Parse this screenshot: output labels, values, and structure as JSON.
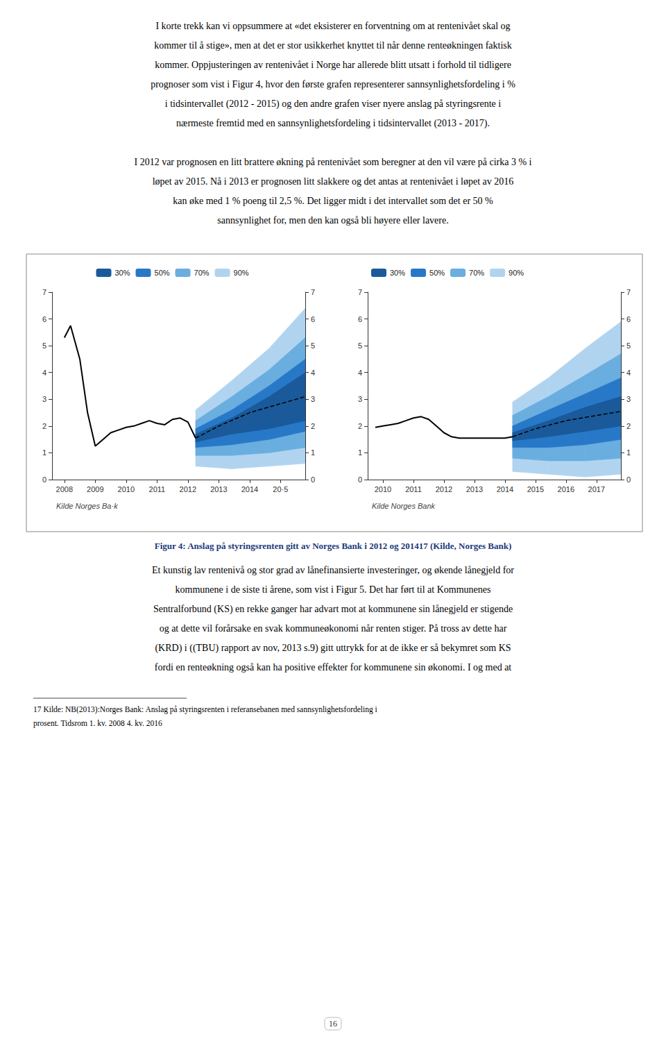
{
  "page": {
    "text_above": [
      [
        "I korte trekk kan vi oppsummere at «det eksisterer en forventning om at rentenivået skal og",
        "kommer til å stige», men at det er stor usikkerhet knyttet til når denne renteøkningen faktisk",
        "kommer. Oppjusteringen av rentenivået i Norge har allerede blitt utsatt i forhold til tidligere",
        "prognoser som vist i Figur 4, hvor den første grafen representerer sannsynlighetsfordeling i %",
        "i tidsintervallet (2012 - 2015) og den andre grafen viser nyere anslag på styringsrente i",
        "nærmeste fremtid med en sannsynlighetsfordeling i tidsintervallet (2013 - 2017)."
      ],
      [
        "I 2012 var prognosen en litt brattere økning på rentenivået som beregner at den vil være på cirka 3 % i",
        "løpet av 2015. Nå i 2013 er prognosen litt slakkere og det antas at rentenivået i løpet av 2016",
        "kan øke med 1 % poeng til 2,5 %. Det ligger midt i det intervallet som det er 50 %",
        "sannsynlighet for, men den kan også bli høyere eller lavere."
      ]
    ],
    "caption": "Figur 4: Anslag på styringsrenten gitt av Norges Bank i 2012 og 201417 (Kilde, Norges Bank)",
    "text_below": [
      "Et kunstig lav rentenivå og stor grad av lånefinansierte investeringer, og økende lånegjeld for",
      "kommunene i de siste ti årene, som vist i Figur 5. Det har ført til at Kommunenes",
      "Sentralforbund (KS) en rekke ganger har advart mot at kommunene sin lånegjeld er stigende",
      "og at dette vil forårsake en svak kommuneøkonomi når renten stiger. På tross av dette har",
      "(KRD) i ((TBU) rapport av nov, 2013 s.9) gitt uttrykk for at de ikke er så bekymret som KS",
      "fordi en renteøkning også kan ha positive effekter for kommunene sin økonomi. I og med at"
    ],
    "footnote": [
      "17 Kilde: NB(2013):Norges Bank: Anslag på styringsrenten i referansebanen med sannsynlighetsfordeling i",
      "prosent. Tidsrom 1. kv. 2008 4. kv. 2016"
    ],
    "page_number": "16"
  },
  "chart_data": [
    {
      "type": "line",
      "xlim": [
        2007.6,
        2015.8
      ],
      "xticks": [
        2008,
        2009,
        2010,
        2011,
        2012,
        2013,
        2014,
        {
          "value": 2015,
          "label": "20·5"
        }
      ],
      "ylim": [
        0,
        7
      ],
      "yticks": [
        0,
        1,
        2,
        3,
        4,
        5,
        6,
        7
      ],
      "y2lim": [
        0,
        7
      ],
      "y2ticks": [
        0,
        1,
        2,
        3,
        4,
        5,
        6,
        7
      ],
      "grid": false,
      "legend": "upper center",
      "annotations": [
        "Kilde Norges Ba·k"
      ],
      "series": [
        {
          "name": "30%",
          "type": "band",
          "color": "#1a5a9a",
          "x": [
            2012.25,
            2013.4215,
            2014.6285,
            2015.8
          ],
          "lower": [
            1.4,
            1.7,
            1.9,
            2.2
          ],
          "upper": [
            1.7,
            2.3,
            3.1,
            4.0
          ]
        },
        {
          "name": "50%",
          "type": "band",
          "color": "#2878c8",
          "x": [
            2012.25,
            2013.4215,
            2014.6285,
            2015.8
          ],
          "lower": [
            1.2,
            1.3,
            1.5,
            1.8
          ],
          "upper": [
            1.9,
            2.6,
            3.5,
            4.5
          ]
        },
        {
          "name": "70%",
          "type": "band",
          "color": "#6aaee0",
          "x": [
            2012.25,
            2013.4215,
            2014.6285,
            2015.8
          ],
          "lower": [
            0.9,
            0.9,
            1.0,
            1.2
          ],
          "upper": [
            2.2,
            3.1,
            4.1,
            5.3
          ]
        },
        {
          "name": "90%",
          "type": "band",
          "color": "#b0d4f0",
          "x": [
            2012.25,
            2013.4215,
            2014.6285,
            2015.8
          ],
          "lower": [
            0.5,
            0.4,
            0.5,
            0.6
          ],
          "upper": [
            2.6,
            3.7,
            4.9,
            6.4
          ]
        },
        {
          "type": "line",
          "color": "#000000",
          "line_style": "dashed",
          "x": [
            2012.25,
            2013.0,
            2014.0,
            2015.8
          ],
          "values": [
            1.55,
            2.0,
            2.5,
            3.1
          ]
        },
        {
          "type": "line",
          "color": "#000000",
          "line_style": "solid",
          "x": [
            2008.0,
            2008.2,
            2008.5,
            2008.75,
            2009.0,
            2009.25,
            2009.5,
            2009.75,
            2010.0,
            2010.25,
            2010.5,
            2010.75,
            2011.0,
            2011.25,
            2011.5,
            2011.75,
            2012.0,
            2012.25
          ],
          "values": [
            5.3,
            5.75,
            4.5,
            2.5,
            1.25,
            1.5,
            1.75,
            1.85,
            1.95,
            2.0,
            2.1,
            2.2,
            2.1,
            2.05,
            2.25,
            2.3,
            2.15,
            1.55
          ]
        }
      ]
    },
    {
      "type": "line",
      "xlim": [
        2009.5,
        2017.8
      ],
      "xticks": [
        2010,
        2011,
        2012,
        2013,
        2014,
        2015,
        2016,
        2017
      ],
      "ylim": [
        0,
        7
      ],
      "yticks": [
        0,
        1,
        2,
        3,
        4,
        5,
        6,
        7
      ],
      "y2lim": [
        0,
        7
      ],
      "y2ticks": [
        0,
        1,
        2,
        3,
        4,
        5,
        6,
        7
      ],
      "grid": false,
      "legend": "upper left",
      "annotations": [
        "Kilde Norges Bank"
      ],
      "series": [
        {
          "name": "30%",
          "type": "band",
          "color": "#1a5a9a",
          "x": [
            2014.25,
            2015.4215,
            2016.6285,
            2017.8
          ],
          "lower": [
            1.45,
            1.6,
            1.8,
            2.0
          ],
          "upper": [
            1.75,
            2.2,
            2.7,
            3.1
          ]
        },
        {
          "name": "50%",
          "type": "band",
          "color": "#2878c8",
          "x": [
            2014.25,
            2015.4215,
            2016.6285,
            2017.8
          ],
          "lower": [
            1.2,
            1.2,
            1.3,
            1.5
          ],
          "upper": [
            2.0,
            2.6,
            3.2,
            3.8
          ]
        },
        {
          "name": "70%",
          "type": "band",
          "color": "#6aaee0",
          "x": [
            2014.25,
            2015.4215,
            2016.6285,
            2017.8
          ],
          "lower": [
            0.8,
            0.7,
            0.7,
            0.8
          ],
          "upper": [
            2.4,
            3.1,
            3.9,
            4.7
          ]
        },
        {
          "name": "90%",
          "type": "band",
          "color": "#b0d4f0",
          "x": [
            2014.25,
            2015.4215,
            2016.6285,
            2017.8
          ],
          "lower": [
            0.3,
            0.2,
            0.1,
            0.2
          ],
          "upper": [
            2.9,
            3.8,
            4.9,
            5.9
          ]
        },
        {
          "type": "line",
          "color": "#000000",
          "line_style": "dashed",
          "x": [
            2014.25,
            2015.0,
            2016.0,
            2017.8
          ],
          "values": [
            1.6,
            1.9,
            2.2,
            2.55
          ]
        },
        {
          "type": "line",
          "color": "#000000",
          "line_style": "solid",
          "x": [
            2009.75,
            2010.0,
            2010.25,
            2010.5,
            2010.75,
            2011.0,
            2011.25,
            2011.5,
            2011.75,
            2012.0,
            2012.25,
            2012.5,
            2012.75,
            2013.0,
            2013.25,
            2013.5,
            2013.75,
            2014.0,
            2014.25
          ],
          "values": [
            1.95,
            2.0,
            2.05,
            2.1,
            2.2,
            2.3,
            2.35,
            2.25,
            2.0,
            1.75,
            1.6,
            1.55,
            1.55,
            1.55,
            1.55,
            1.55,
            1.55,
            1.55,
            1.6
          ]
        }
      ]
    }
  ]
}
